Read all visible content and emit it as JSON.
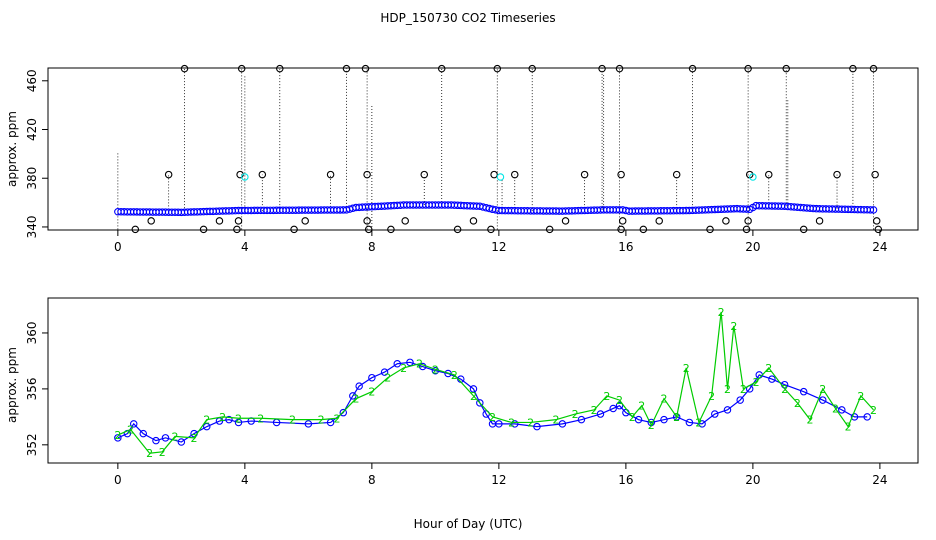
{
  "figure": {
    "title": "HDP_150730  CO2 Timeseries",
    "xlabel": "Hour of Day (UTC)"
  },
  "colors": {
    "frame": "#000000",
    "series_black": "#000000",
    "series_blue": "#0000ff",
    "series_cyan": "#00e5e5",
    "series_green": "#00cc00"
  },
  "chart_data": [
    {
      "type": "scatter",
      "title": "",
      "xlabel": "",
      "ylabel": "approx. ppm",
      "xlim": [
        -2.2,
        25.2
      ],
      "ylim": [
        337.5,
        470.5
      ],
      "x_ticks": [
        0,
        4,
        8,
        12,
        16,
        20,
        24
      ],
      "y_ticks": [
        340,
        380,
        420,
        460
      ],
      "grid": false,
      "legend": "none",
      "baseline_blue": [
        [
          0,
          352.5
        ],
        [
          2,
          352
        ],
        [
          3.8,
          353.5
        ],
        [
          7.2,
          354
        ],
        [
          7.5,
          356
        ],
        [
          8.3,
          357
        ],
        [
          9,
          358
        ],
        [
          10.5,
          358
        ],
        [
          11.4,
          357
        ],
        [
          11.8,
          354.5
        ],
        [
          12,
          353.5
        ],
        [
          14,
          353
        ],
        [
          15.3,
          354
        ],
        [
          15.9,
          354
        ],
        [
          16.1,
          353
        ],
        [
          18,
          353.5
        ],
        [
          19.5,
          355
        ],
        [
          19.9,
          354.5
        ],
        [
          20.1,
          357.5
        ],
        [
          21,
          357
        ],
        [
          22,
          355
        ],
        [
          23.8,
          354
        ]
      ],
      "spike_points_black": [
        [
          2.1,
          470
        ],
        [
          3.9,
          470
        ],
        [
          5.1,
          470
        ],
        [
          7.2,
          470
        ],
        [
          7.8,
          470
        ],
        [
          10.2,
          470
        ],
        [
          11.95,
          470
        ],
        [
          13.05,
          470
        ],
        [
          15.25,
          470
        ],
        [
          15.8,
          470
        ],
        [
          18.1,
          470
        ],
        [
          19.85,
          470
        ],
        [
          21.05,
          470
        ],
        [
          23.15,
          470
        ],
        [
          23.8,
          470
        ],
        [
          1.6,
          383
        ],
        [
          3.85,
          383
        ],
        [
          4.55,
          383
        ],
        [
          6.7,
          383
        ],
        [
          7.85,
          383
        ],
        [
          9.65,
          383
        ],
        [
          11.85,
          383
        ],
        [
          12.5,
          383
        ],
        [
          14.7,
          383
        ],
        [
          15.85,
          383
        ],
        [
          17.6,
          383
        ],
        [
          19.9,
          383
        ],
        [
          20.5,
          383
        ],
        [
          22.65,
          383
        ],
        [
          23.85,
          383
        ],
        [
          1.05,
          345
        ],
        [
          3.2,
          345
        ],
        [
          3.8,
          345
        ],
        [
          5.9,
          345
        ],
        [
          7.85,
          345
        ],
        [
          9.05,
          345
        ],
        [
          11.2,
          345
        ],
        [
          14.1,
          345
        ],
        [
          15.9,
          345
        ],
        [
          17.05,
          345
        ],
        [
          19.15,
          345
        ],
        [
          19.85,
          345
        ],
        [
          22.1,
          345
        ],
        [
          23.9,
          345
        ],
        [
          0.55,
          338
        ],
        [
          2.7,
          338
        ],
        [
          3.75,
          338
        ],
        [
          5.55,
          338
        ],
        [
          7.9,
          338
        ],
        [
          8.6,
          338
        ],
        [
          10.7,
          338
        ],
        [
          11.75,
          338
        ],
        [
          13.6,
          338
        ],
        [
          15.85,
          338
        ],
        [
          16.55,
          338
        ],
        [
          18.65,
          338
        ],
        [
          19.8,
          338
        ],
        [
          21.6,
          338
        ],
        [
          23.95,
          338
        ]
      ],
      "spike_points_cyan": [
        [
          4.0,
          381
        ],
        [
          12.05,
          381
        ],
        [
          20.0,
          381
        ]
      ],
      "dotted_lines": [
        [
          0,
          338,
          401
        ],
        [
          2.1,
          353,
          470
        ],
        [
          3.9,
          338,
          470
        ],
        [
          4.0,
          352,
          465
        ],
        [
          5.1,
          353,
          470
        ],
        [
          7.2,
          354,
          470
        ],
        [
          7.85,
          338,
          470
        ],
        [
          8.0,
          340,
          440
        ],
        [
          10.2,
          358,
          470
        ],
        [
          11.95,
          338,
          470
        ],
        [
          12.1,
          353,
          380
        ],
        [
          13.05,
          353,
          470
        ],
        [
          15.25,
          354,
          470
        ],
        [
          15.3,
          353,
          465
        ],
        [
          15.8,
          338,
          470
        ],
        [
          18.1,
          353,
          470
        ],
        [
          19.85,
          338,
          470
        ],
        [
          21.05,
          357,
          470
        ],
        [
          21.1,
          357,
          445
        ],
        [
          23.15,
          354,
          470
        ],
        [
          23.8,
          338,
          470
        ],
        [
          1.6,
          352,
          383
        ],
        [
          4.55,
          353,
          383
        ],
        [
          6.7,
          354,
          383
        ],
        [
          9.65,
          358,
          383
        ],
        [
          12.5,
          353,
          383
        ],
        [
          14.7,
          353,
          383
        ],
        [
          17.6,
          353,
          383
        ],
        [
          20.5,
          357,
          383
        ],
        [
          22.65,
          355,
          383
        ]
      ]
    },
    {
      "type": "scatter",
      "title": "",
      "xlabel": "Hour of Day (UTC)",
      "ylabel": "approx. ppm",
      "xlim": [
        -2.2,
        25.2
      ],
      "ylim": [
        350.7,
        362.5
      ],
      "x_ticks": [
        0,
        4,
        8,
        12,
        16,
        20,
        24
      ],
      "y_ticks": [
        352,
        356,
        360
      ],
      "grid": false,
      "legend": "none",
      "series": [
        {
          "marker": "o",
          "color": "blue",
          "points": [
            [
              0,
              352.5
            ],
            [
              0.3,
              352.8
            ],
            [
              0.5,
              353.5
            ],
            [
              0.8,
              352.8
            ],
            [
              1.2,
              352.3
            ],
            [
              1.5,
              352.5
            ],
            [
              2,
              352.2
            ],
            [
              2.4,
              352.8
            ],
            [
              2.8,
              353.3
            ],
            [
              3.2,
              353.7
            ],
            [
              3.5,
              353.8
            ],
            [
              3.8,
              353.6
            ],
            [
              4.2,
              353.7
            ],
            [
              5,
              353.6
            ],
            [
              6,
              353.5
            ],
            [
              6.7,
              353.6
            ],
            [
              7.1,
              354.3
            ],
            [
              7.4,
              355.5
            ],
            [
              7.6,
              356.2
            ],
            [
              8,
              356.8
            ],
            [
              8.4,
              357.2
            ],
            [
              8.8,
              357.8
            ],
            [
              9.2,
              357.9
            ],
            [
              9.6,
              357.6
            ],
            [
              10,
              357.3
            ],
            [
              10.4,
              357.1
            ],
            [
              10.8,
              356.7
            ],
            [
              11.2,
              356
            ],
            [
              11.4,
              355
            ],
            [
              11.6,
              354.2
            ],
            [
              11.8,
              353.5
            ],
            [
              12,
              353.5
            ],
            [
              12.5,
              353.5
            ],
            [
              13.2,
              353.3
            ],
            [
              14,
              353.5
            ],
            [
              14.6,
              353.8
            ],
            [
              15.2,
              354.2
            ],
            [
              15.6,
              354.6
            ],
            [
              15.8,
              354.8
            ],
            [
              16,
              354.3
            ],
            [
              16.4,
              353.8
            ],
            [
              16.8,
              353.6
            ],
            [
              17.2,
              353.8
            ],
            [
              17.6,
              354
            ],
            [
              18,
              353.6
            ],
            [
              18.4,
              353.5
            ],
            [
              18.8,
              354.2
            ],
            [
              19.2,
              354.5
            ],
            [
              19.6,
              355.2
            ],
            [
              19.9,
              356
            ],
            [
              20.2,
              357
            ],
            [
              20.6,
              356.7
            ],
            [
              21,
              356.3
            ],
            [
              21.6,
              355.8
            ],
            [
              22.2,
              355.2
            ],
            [
              22.8,
              354.5
            ],
            [
              23.2,
              354
            ],
            [
              23.6,
              354
            ]
          ]
        },
        {
          "marker": "2",
          "color": "green",
          "points": [
            [
              0,
              352.7
            ],
            [
              0.4,
              353.1
            ],
            [
              1,
              351.4
            ],
            [
              1.4,
              351.5
            ],
            [
              1.8,
              352.6
            ],
            [
              2.4,
              352.5
            ],
            [
              2.8,
              353.8
            ],
            [
              3.3,
              354
            ],
            [
              3.8,
              353.9
            ],
            [
              4.5,
              353.9
            ],
            [
              5.5,
              353.8
            ],
            [
              6.4,
              353.8
            ],
            [
              6.9,
              353.9
            ],
            [
              7.5,
              355.3
            ],
            [
              8,
              355.8
            ],
            [
              8.5,
              356.8
            ],
            [
              9,
              357.5
            ],
            [
              9.5,
              357.8
            ],
            [
              10,
              357.4
            ],
            [
              10.6,
              357
            ],
            [
              11.2,
              355.5
            ],
            [
              11.8,
              354
            ],
            [
              12.4,
              353.6
            ],
            [
              13,
              353.6
            ],
            [
              13.8,
              353.8
            ],
            [
              14.4,
              354.2
            ],
            [
              15,
              354.5
            ],
            [
              15.4,
              355.5
            ],
            [
              15.8,
              355.2
            ],
            [
              16.2,
              354
            ],
            [
              16.5,
              354.8
            ],
            [
              16.8,
              353.4
            ],
            [
              17.2,
              355.3
            ],
            [
              17.6,
              354
            ],
            [
              17.9,
              357.5
            ],
            [
              18.3,
              353.6
            ],
            [
              18.7,
              355.5
            ],
            [
              19,
              361.5
            ],
            [
              19.2,
              356
            ],
            [
              19.4,
              360.5
            ],
            [
              19.7,
              356
            ],
            [
              20.1,
              356.5
            ],
            [
              20.5,
              357.5
            ],
            [
              21,
              356
            ],
            [
              21.4,
              355
            ],
            [
              21.8,
              353.8
            ],
            [
              22.2,
              356
            ],
            [
              22.6,
              354.6
            ],
            [
              23,
              353.3
            ],
            [
              23.4,
              355.5
            ],
            [
              23.8,
              354.5
            ]
          ]
        }
      ]
    }
  ]
}
